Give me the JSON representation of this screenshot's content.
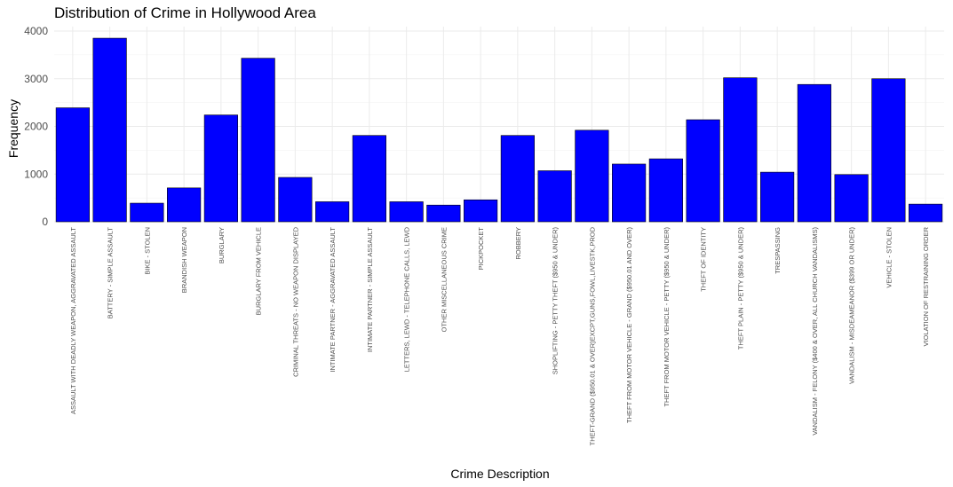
{
  "chart_data": {
    "type": "bar",
    "title": "Distribution of Crime in Hollywood Area",
    "xlabel": "Crime Description",
    "ylabel": "Frequency",
    "ylim": [
      0,
      4000
    ],
    "yticks": [
      0,
      1000,
      2000,
      3000,
      4000
    ],
    "ytick_labels": [
      "0",
      "1000",
      "2000",
      "3000",
      "4000"
    ],
    "grid": true,
    "bar_color": "#0000ff",
    "bar_edge_color": "#000000",
    "categories": [
      "ASSAULT WITH DEADLY WEAPON, AGGRAVATED ASSAULT",
      "BATTERY - SIMPLE ASSAULT",
      "BIKE - STOLEN",
      "BRANDISH WEAPON",
      "BURGLARY",
      "BURGLARY FROM VEHICLE",
      "CRIMINAL THREATS - NO WEAPON DISPLAYED",
      "INTIMATE PARTNER - AGGRAVATED ASSAULT",
      "INTIMATE PARTNER - SIMPLE ASSAULT",
      "LETTERS, LEWD  -  TELEPHONE CALLS, LEWD",
      "OTHER MISCELLANEOUS CRIME",
      "PICKPOCKET",
      "ROBBERY",
      "SHOPLIFTING - PETTY THEFT ($950 & UNDER)",
      "THEFT-GRAND ($950.01 & OVER)EXCPT,GUNS,FOWL,LIVESTK,PROD",
      "THEFT FROM MOTOR VEHICLE - GRAND ($950.01 AND OVER)",
      "THEFT FROM MOTOR VEHICLE - PETTY ($950 & UNDER)",
      "THEFT OF IDENTITY",
      "THEFT PLAIN - PETTY ($950 & UNDER)",
      "TRESPASSING",
      "VANDALISM - FELONY ($400 & OVER, ALL CHURCH VANDALISMS)",
      "VANDALISM - MISDEAMEANOR ($399 OR UNDER)",
      "VEHICLE - STOLEN",
      "VIOLATION OF RESTRAINING ORDER"
    ],
    "values": [
      2390,
      3850,
      390,
      710,
      2240,
      3430,
      930,
      420,
      1810,
      420,
      350,
      460,
      1810,
      1070,
      1920,
      1210,
      1320,
      2140,
      3020,
      1040,
      2880,
      990,
      3000,
      370
    ]
  }
}
